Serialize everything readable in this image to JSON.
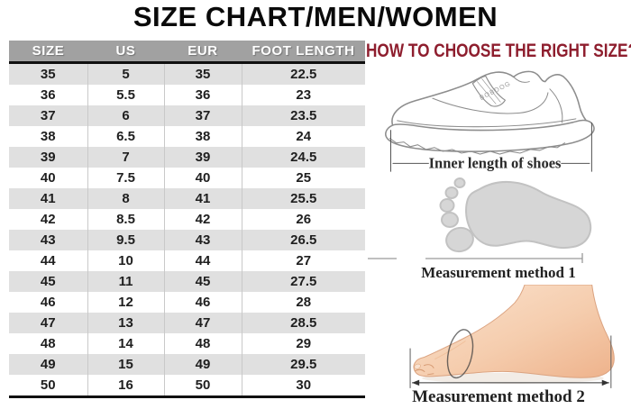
{
  "page": {
    "title": "SIZE CHART/MEN/WOMEN"
  },
  "size_table": {
    "headers": [
      "SIZE",
      "US",
      "EUR",
      "FOOT LENGTH"
    ],
    "rows": [
      [
        "35",
        "5",
        "35",
        "22.5"
      ],
      [
        "36",
        "5.5",
        "36",
        "23"
      ],
      [
        "37",
        "6",
        "37",
        "23.5"
      ],
      [
        "38",
        "6.5",
        "38",
        "24"
      ],
      [
        "39",
        "7",
        "39",
        "24.5"
      ],
      [
        "40",
        "7.5",
        "40",
        "25"
      ],
      [
        "41",
        "8",
        "41",
        "25.5"
      ],
      [
        "42",
        "8.5",
        "42",
        "26"
      ],
      [
        "43",
        "9.5",
        "43",
        "26.5"
      ],
      [
        "44",
        "10",
        "44",
        "27"
      ],
      [
        "45",
        "11",
        "45",
        "27.5"
      ],
      [
        "46",
        "12",
        "46",
        "28"
      ],
      [
        "47",
        "13",
        "47",
        "28.5"
      ],
      [
        "48",
        "14",
        "48",
        "29"
      ],
      [
        "49",
        "15",
        "49",
        "29.5"
      ],
      [
        "50",
        "16",
        "50",
        "30"
      ]
    ]
  },
  "guide": {
    "heading": "HOW TO CHOOSE THE RIGHT SIZE?",
    "shoe_brand": "BOBDOG",
    "captions": {
      "shoe": "Inner length of shoes",
      "method1": "Measurement method 1",
      "method2": "Measurement method 2"
    }
  },
  "colors": {
    "accent_red": "#8e1e2e",
    "table_header_bg": "#a1a1a1",
    "row_alt_bg": "#e0e0e0",
    "line_art": "#8d8d8d",
    "skin_light": "#f9ddc4",
    "skin_dark": "#eeb28b"
  }
}
